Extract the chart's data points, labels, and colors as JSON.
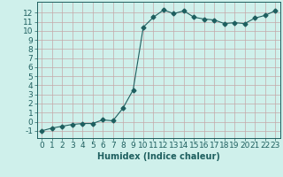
{
  "x": [
    0,
    1,
    2,
    3,
    4,
    5,
    6,
    7,
    8,
    9,
    10,
    11,
    12,
    13,
    14,
    15,
    16,
    17,
    18,
    19,
    20,
    21,
    22,
    23
  ],
  "y": [
    -1,
    -0.7,
    -0.5,
    -0.3,
    -0.2,
    -0.2,
    0.2,
    0.1,
    1.5,
    3.5,
    10.4,
    11.5,
    12.3,
    11.9,
    12.2,
    11.5,
    11.3,
    11.2,
    10.8,
    10.9,
    10.8,
    11.4,
    11.7,
    12.2
  ],
  "line_color": "#1e5f5f",
  "marker": "D",
  "marker_size": 2.5,
  "bg_color": "#cff0eb",
  "grid_color_major": "#c4a8a8",
  "xlabel": "Humidex (Indice chaleur)",
  "xlim": [
    -0.5,
    23.5
  ],
  "ylim": [
    -1.8,
    13.2
  ],
  "xticks": [
    0,
    1,
    2,
    3,
    4,
    5,
    6,
    7,
    8,
    9,
    10,
    11,
    12,
    13,
    14,
    15,
    16,
    17,
    18,
    19,
    20,
    21,
    22,
    23
  ],
  "yticks": [
    -1,
    0,
    1,
    2,
    3,
    4,
    5,
    6,
    7,
    8,
    9,
    10,
    11,
    12
  ],
  "xlabel_fontsize": 7,
  "tick_fontsize": 6.5
}
